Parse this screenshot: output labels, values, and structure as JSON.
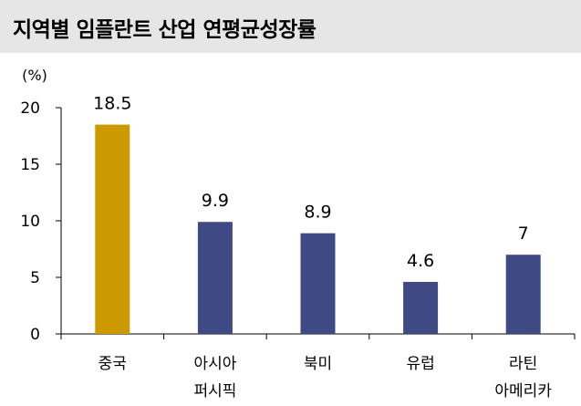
{
  "title": "지역별 임플란트 산업 연평균성장률",
  "chart_data": {
    "type": "bar",
    "title": "지역별 임플란트 산업 연평균성장률",
    "ylabel": "(%)",
    "xlabel": "",
    "categories": [
      [
        "중국"
      ],
      [
        "아시아",
        "퍼시픽"
      ],
      [
        "북미"
      ],
      [
        "유럽"
      ],
      [
        "라틴",
        "아메리카"
      ]
    ],
    "values": [
      18.5,
      9.9,
      8.9,
      4.6,
      7
    ],
    "value_labels": [
      "18.5",
      "9.9",
      "8.9",
      "4.6",
      "7"
    ],
    "bar_colors": [
      "#cc9900",
      "#3f4a85",
      "#3f4a85",
      "#3f4a85",
      "#3f4a85"
    ],
    "ylim": [
      0,
      20
    ],
    "yticks": [
      0,
      5,
      10,
      15,
      20
    ],
    "grid": false,
    "legend": "none"
  }
}
